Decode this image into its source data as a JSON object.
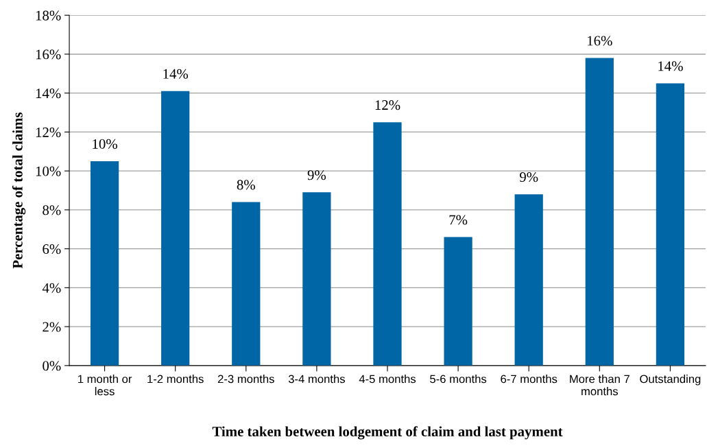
{
  "chart_data": {
    "type": "bar",
    "xlabel": "Time taken between lodgement of claim and last payment",
    "ylabel": "Percentage of total claims",
    "categories": [
      "1 month or less",
      "1-2 months",
      "2-3 months",
      "3-4 months",
      "4-5 months",
      "5-6 months",
      "6-7 months",
      "More than 7 months",
      "Outstanding"
    ],
    "values": [
      10.5,
      14.1,
      8.4,
      8.9,
      12.5,
      6.6,
      8.8,
      15.8,
      14.5
    ],
    "value_labels": [
      "10%",
      "14%",
      "8%",
      "9%",
      "12%",
      "7%",
      "9%",
      "16%",
      "14%"
    ],
    "color": "#0066a6",
    "ylim": [
      0,
      18
    ],
    "yticks": [
      {
        "value": 0,
        "label": "0%"
      },
      {
        "value": 2,
        "label": "2%"
      },
      {
        "value": 4,
        "label": "4%"
      },
      {
        "value": 6,
        "label": "6%"
      },
      {
        "value": 8,
        "label": "8%"
      },
      {
        "value": 10,
        "label": "10%"
      },
      {
        "value": 12,
        "label": "12%"
      },
      {
        "value": 14,
        "label": "14%"
      },
      {
        "value": 16,
        "label": "16%"
      },
      {
        "value": 18,
        "label": "18%"
      }
    ],
    "grid": "y",
    "legend": false
  }
}
